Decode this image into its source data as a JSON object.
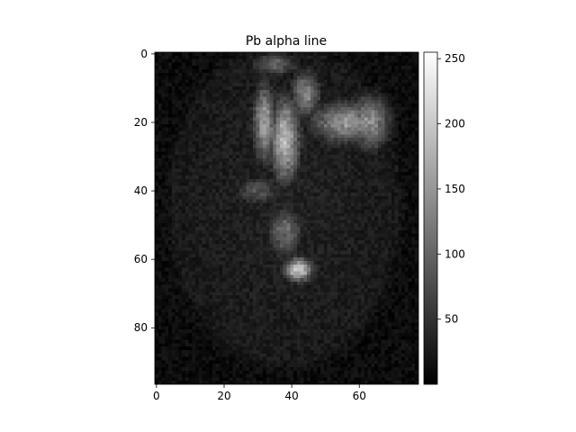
{
  "chart_data": {
    "type": "heatmap",
    "title": "Pb alpha line",
    "xlabel": "",
    "ylabel": "",
    "xlim": [
      -0.5,
      77.5
    ],
    "ylim": [
      96.5,
      -0.5
    ],
    "grid": false,
    "x_ticks": [
      0,
      20,
      40,
      60
    ],
    "y_ticks": [
      0,
      20,
      40,
      60,
      80
    ],
    "colormap": "gray",
    "colorbar": {
      "range": [
        0,
        255
      ],
      "ticks": [
        50,
        100,
        150,
        200,
        250
      ],
      "low_color": "#000000",
      "high_color": "#ffffff"
    },
    "image_shape": [
      97,
      78
    ],
    "object": {
      "shape": "ellipse",
      "center": [
        38,
        44
      ],
      "radii": [
        34,
        47
      ],
      "level": 25,
      "background_level": 12
    },
    "hot_regions": [
      {
        "center": [
          38,
          25
        ],
        "radii": [
          5,
          14
        ],
        "peak": 215
      },
      {
        "center": [
          32,
          20
        ],
        "radii": [
          4,
          13
        ],
        "peak": 180
      },
      {
        "center": [
          44,
          12
        ],
        "radii": [
          5,
          8
        ],
        "peak": 150
      },
      {
        "center": [
          56,
          20
        ],
        "radii": [
          12,
          7
        ],
        "peak": 170
      },
      {
        "center": [
          63,
          20
        ],
        "radii": [
          7,
          9
        ],
        "peak": 165
      },
      {
        "center": [
          38,
          52
        ],
        "radii": [
          6,
          9
        ],
        "peak": 120
      },
      {
        "center": [
          42,
          63
        ],
        "radii": [
          5,
          4
        ],
        "peak": 235
      },
      {
        "center": [
          35,
          3
        ],
        "radii": [
          8,
          4
        ],
        "peak": 110
      },
      {
        "center": [
          30,
          40
        ],
        "radii": [
          8,
          5
        ],
        "peak": 95
      }
    ],
    "noise_amplitude": 24,
    "noise_seed": 7
  }
}
